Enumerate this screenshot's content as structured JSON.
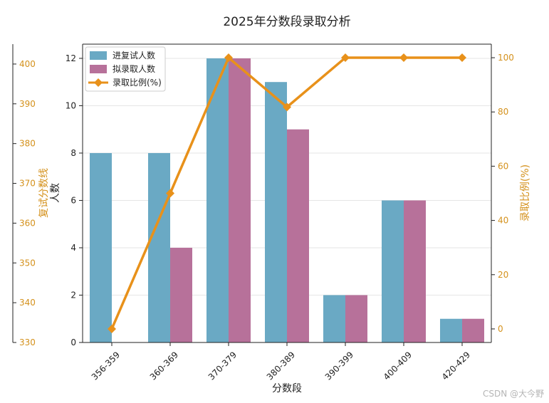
{
  "chart_data": {
    "type": "bar",
    "title": "2025年分数段录取分析",
    "xlabel": "分数段",
    "ylabel": "人数",
    "y2label": "录取比例(%)",
    "y3label": "复试分数线",
    "categories": [
      "356-359",
      "360-369",
      "370-379",
      "380-389",
      "390-399",
      "400-409",
      "420-429"
    ],
    "series": [
      {
        "name": "进复试人数",
        "type": "bar",
        "color": "#6aa9c4",
        "values": [
          8,
          8,
          12,
          11,
          2,
          6,
          1
        ]
      },
      {
        "name": "拟录取人数",
        "type": "bar",
        "color": "#b7719a",
        "values": [
          0,
          4,
          12,
          9,
          2,
          6,
          1
        ]
      },
      {
        "name": "录取比例(%)",
        "type": "line",
        "axis": "right",
        "color": "#e8911a",
        "marker": "diamond",
        "values": [
          0,
          50,
          100,
          81.8,
          100,
          100,
          100
        ]
      }
    ],
    "ylim": [
      0,
      12.6
    ],
    "yticks": [
      0,
      2,
      4,
      6,
      8,
      10,
      12
    ],
    "y2lim": [
      -5,
      105
    ],
    "y2ticks": [
      0,
      20,
      40,
      60,
      80,
      100
    ],
    "y3lim": [
      330,
      405
    ],
    "y3ticks": [
      330,
      340,
      350,
      360,
      370,
      380,
      390,
      400
    ],
    "grid": true,
    "legend_position": "top-left"
  },
  "watermark": "CSDN @大今野"
}
